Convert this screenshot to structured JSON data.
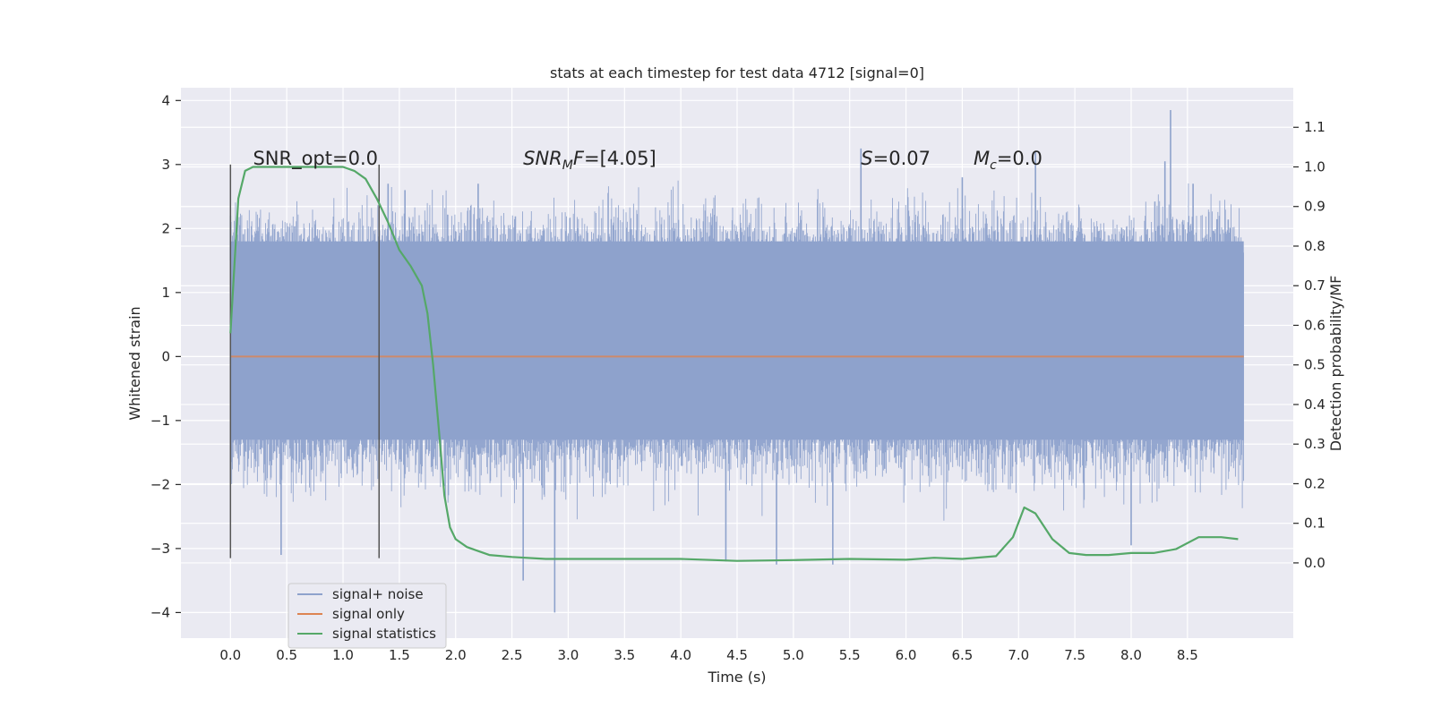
{
  "chart_data": {
    "type": "line",
    "title": "stats at each timestep for test data 4712 [signal=0]",
    "xlabel": "Time (s)",
    "ylabel": "Whitened strain",
    "y2label": "Detection probability/MF",
    "xlim": [
      -0.44,
      9.44
    ],
    "ylim": [
      -4.4,
      4.2
    ],
    "y2lim": [
      -0.19,
      1.2
    ],
    "x_ticks": [
      "0.0",
      "0.5",
      "1.0",
      "1.5",
      "2.0",
      "2.5",
      "3.0",
      "3.5",
      "4.0",
      "4.5",
      "5.0",
      "5.5",
      "6.0",
      "6.5",
      "7.0",
      "7.5",
      "8.0",
      "8.5"
    ],
    "y_ticks": [
      "4",
      "3",
      "2",
      "1",
      "0",
      "−1",
      "−2",
      "−3",
      "−4"
    ],
    "y2_ticks": [
      "1.1",
      "1.0",
      "0.9",
      "0.8",
      "0.7",
      "0.6",
      "0.5",
      "0.4",
      "0.3",
      "0.2",
      "0.1",
      "0.0"
    ],
    "grid": true,
    "legend_position": "lower-left",
    "colors": {
      "noise": "#8ea2cc",
      "signal": "#dd8452",
      "stats": "#55a868",
      "vline": "#555555",
      "background": "#eaeaf2",
      "grid": "#ffffff"
    },
    "series": [
      {
        "name": "signal+ noise",
        "axis": "left",
        "description_range": [
          -2.6,
          2.8
        ],
        "band_core": [
          -1.3,
          1.8
        ],
        "noise_seed": 4712,
        "t_range": [
          0.0,
          9.0
        ],
        "spikes_up": [
          [
            0.0,
            2.2
          ],
          [
            1.4,
            2.7
          ],
          [
            1.55,
            2.6
          ],
          [
            2.2,
            2.7
          ],
          [
            5.6,
            3.25
          ],
          [
            6.5,
            2.8
          ],
          [
            7.15,
            3.2
          ],
          [
            8.35,
            3.85
          ],
          [
            8.3,
            3.05
          ],
          [
            8.55,
            2.7
          ]
        ],
        "spikes_down": [
          [
            0.45,
            -3.1
          ],
          [
            2.6,
            -3.5
          ],
          [
            2.88,
            -4.0
          ],
          [
            4.4,
            -3.2
          ],
          [
            4.85,
            -3.25
          ],
          [
            5.35,
            -3.25
          ],
          [
            8.0,
            -2.95
          ]
        ]
      },
      {
        "name": "signal only",
        "axis": "left",
        "x": [
          0.0,
          9.0
        ],
        "values": [
          0.0,
          0.0
        ]
      },
      {
        "name": "signal statistics",
        "axis": "right",
        "x": [
          0.0,
          0.07,
          0.13,
          0.2,
          0.3,
          0.5,
          0.8,
          1.0,
          1.1,
          1.2,
          1.3,
          1.4,
          1.5,
          1.6,
          1.7,
          1.75,
          1.8,
          1.85,
          1.9,
          1.95,
          2.0,
          2.1,
          2.2,
          2.3,
          2.5,
          2.8,
          3.2,
          3.5,
          4.0,
          4.5,
          5.0,
          5.5,
          6.0,
          6.25,
          6.5,
          6.8,
          6.95,
          7.05,
          7.15,
          7.3,
          7.45,
          7.6,
          7.8,
          8.0,
          8.2,
          8.4,
          8.6,
          8.8,
          8.95
        ],
        "values": [
          0.58,
          0.92,
          0.99,
          1.0,
          1.0,
          1.0,
          1.0,
          1.0,
          0.99,
          0.97,
          0.92,
          0.86,
          0.79,
          0.75,
          0.7,
          0.63,
          0.5,
          0.34,
          0.17,
          0.09,
          0.06,
          0.04,
          0.03,
          0.02,
          0.015,
          0.01,
          0.01,
          0.01,
          0.01,
          0.005,
          0.007,
          0.01,
          0.008,
          0.013,
          0.01,
          0.017,
          0.065,
          0.14,
          0.125,
          0.06,
          0.025,
          0.02,
          0.02,
          0.025,
          0.025,
          0.035,
          0.065,
          0.065,
          0.06
        ]
      }
    ],
    "vlines": [
      0.0,
      1.32
    ],
    "vline_range": [
      -3.15,
      3.0
    ],
    "annotations": [
      {
        "text": "SNR_opt=0.0",
        "x": 0.2,
        "y": 3.0
      },
      {
        "text_italic": "SNR",
        "sub": "M",
        "text_italic2": "F",
        "text_rest": "=[4.05]",
        "x": 2.6,
        "y": 3.0
      },
      {
        "text_italic": "S",
        "text_rest": "=0.07",
        "x": 5.6,
        "y": 3.0
      },
      {
        "text_italic": "M",
        "sub": "c",
        "text_rest": "=0.0",
        "x": 6.6,
        "y": 3.0
      }
    ]
  }
}
